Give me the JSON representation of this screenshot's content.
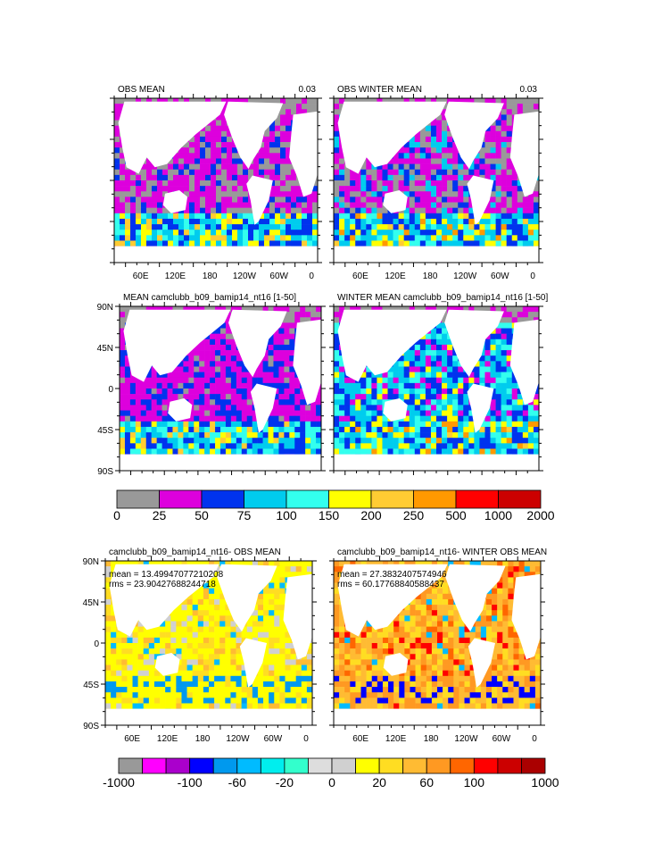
{
  "panels": [
    {
      "id": "obs_mean",
      "title_left": "OBS MEAN",
      "title_right": "0.03",
      "y_labels": [
        "",
        "",
        "",
        "",
        ""
      ],
      "x_labels": [
        "60E",
        "120E",
        "180",
        "120W",
        "60W",
        "0"
      ],
      "scheme": "abs",
      "variant": 1,
      "stats": []
    },
    {
      "id": "obs_winter",
      "title_left": "OBS WINTER MEAN",
      "title_right": "0.03",
      "y_labels": [
        "",
        "",
        "",
        "",
        ""
      ],
      "x_labels": [
        "60E",
        "120E",
        "180",
        "120W",
        "60W",
        "0"
      ],
      "scheme": "abs",
      "variant": 2,
      "stats": []
    },
    {
      "id": "model_mean",
      "title_left": "MEAN camclubb_b09_bamip14_nt16 [1-50]",
      "title_right": "",
      "y_labels": [
        "90N",
        "45N",
        "0",
        "45S",
        "90S"
      ],
      "x_labels": [
        "",
        "",
        "",
        "",
        "",
        ""
      ],
      "scheme": "abs",
      "variant": 3,
      "stats": []
    },
    {
      "id": "model_winter",
      "title_left": "WINTER MEAN camclubb_b09_bamip14_nt16 [1-50]",
      "title_right": "",
      "y_labels": [
        "",
        "",
        "",
        "",
        ""
      ],
      "x_labels": [
        "",
        "",
        "",
        "",
        "",
        ""
      ],
      "scheme": "abs",
      "variant": 4,
      "stats": []
    },
    {
      "id": "diff_mean",
      "title_left": "camclubb_b09_bamip14_nt16- OBS MEAN",
      "title_right": "",
      "y_labels": [
        "90N",
        "45N",
        "0",
        "45S",
        "90S"
      ],
      "x_labels": [
        "60E",
        "120E",
        "180",
        "120W",
        "60W",
        "0"
      ],
      "scheme": "diff",
      "variant": 5,
      "stats": [
        "mean = 13.49947077210208",
        "rms = 23.90427688244718"
      ]
    },
    {
      "id": "diff_winter",
      "title_left": "camclubb_b09_bamip14_nt16- WINTER OBS MEAN",
      "title_right": "",
      "y_labels": [
        "",
        "",
        "",
        "",
        ""
      ],
      "x_labels": [
        "60E",
        "120E",
        "180",
        "120W",
        "60W",
        "0"
      ],
      "scheme": "diff",
      "variant": 6,
      "stats": [
        "mean = 27.3832407574946",
        "rms = 60.17768840588437"
      ]
    }
  ],
  "colorbar_abs": {
    "colors": [
      "#999999",
      "#dd00dd",
      "#0033ee",
      "#00ccee",
      "#33ffee",
      "#ffff00",
      "#ffcc33",
      "#ff9900",
      "#ff0000",
      "#cc0000"
    ],
    "labels": [
      "0",
      "25",
      "50",
      "75",
      "100",
      "150",
      "200",
      "250",
      "500",
      "1000",
      "2000"
    ]
  },
  "colorbar_diff": {
    "colors": [
      "#999999",
      "#ff00ff",
      "#aa00cc",
      "#0000ff",
      "#0099ee",
      "#00bbff",
      "#00eeee",
      "#33ffcc",
      "#dddddd",
      "#d0d0d0",
      "#ffff00",
      "#ffdd22",
      "#ffbb33",
      "#ff9922",
      "#ff6600",
      "#ff0000",
      "#cc0000",
      "#aa0000"
    ],
    "labels": [
      "-1000",
      "-100",
      "-60",
      "-20",
      "0",
      "20",
      "60",
      "100",
      "1000"
    ]
  },
  "chart_data": [
    {
      "type": "heatmap",
      "title": "OBS MEAN",
      "annotation": "0.03",
      "xlabel": "",
      "ylabel": "",
      "x_tick_labels": [
        "60E",
        "120E",
        "180",
        "120W",
        "60W",
        "0"
      ],
      "grid": false,
      "levels": [
        0,
        25,
        50,
        75,
        100,
        150,
        200,
        250,
        500,
        1000,
        2000
      ]
    },
    {
      "type": "heatmap",
      "title": "OBS WINTER MEAN",
      "annotation": "0.03",
      "xlabel": "",
      "ylabel": "",
      "x_tick_labels": [
        "60E",
        "120E",
        "180",
        "120W",
        "60W",
        "0"
      ],
      "grid": false,
      "levels": [
        0,
        25,
        50,
        75,
        100,
        150,
        200,
        250,
        500,
        1000,
        2000
      ]
    },
    {
      "type": "heatmap",
      "title": "MEAN camclubb_b09_bamip14_nt16 [1-50]",
      "xlabel": "",
      "ylabel": "",
      "y_tick_labels": [
        "90N",
        "45N",
        "0",
        "45S",
        "90S"
      ],
      "grid": false,
      "levels": [
        0,
        25,
        50,
        75,
        100,
        150,
        200,
        250,
        500,
        1000,
        2000
      ]
    },
    {
      "type": "heatmap",
      "title": "WINTER MEAN camclubb_b09_bamip14_nt16 [1-50]",
      "xlabel": "",
      "ylabel": "",
      "grid": false,
      "levels": [
        0,
        25,
        50,
        75,
        100,
        150,
        200,
        250,
        500,
        1000,
        2000
      ]
    },
    {
      "type": "heatmap",
      "title": "camclubb_b09_bamip14_nt16- OBS MEAN",
      "xlabel": "",
      "ylabel": "",
      "x_tick_labels": [
        "60E",
        "120E",
        "180",
        "120W",
        "60W",
        "0"
      ],
      "y_tick_labels": [
        "90N",
        "45N",
        "0",
        "45S",
        "90S"
      ],
      "mean": 13.49947077210208,
      "rms": 23.90427688244718,
      "grid": false,
      "levels": [
        -1000,
        -100,
        -60,
        -20,
        0,
        20,
        60,
        100,
        1000
      ]
    },
    {
      "type": "heatmap",
      "title": "camclubb_b09_bamip14_nt16- WINTER OBS MEAN",
      "xlabel": "",
      "ylabel": "",
      "x_tick_labels": [
        "60E",
        "120E",
        "180",
        "120W",
        "60W",
        "0"
      ],
      "mean": 27.3832407574946,
      "rms": 60.17768840588437,
      "grid": false,
      "levels": [
        -1000,
        -100,
        -60,
        -20,
        0,
        20,
        60,
        100,
        1000
      ]
    }
  ]
}
